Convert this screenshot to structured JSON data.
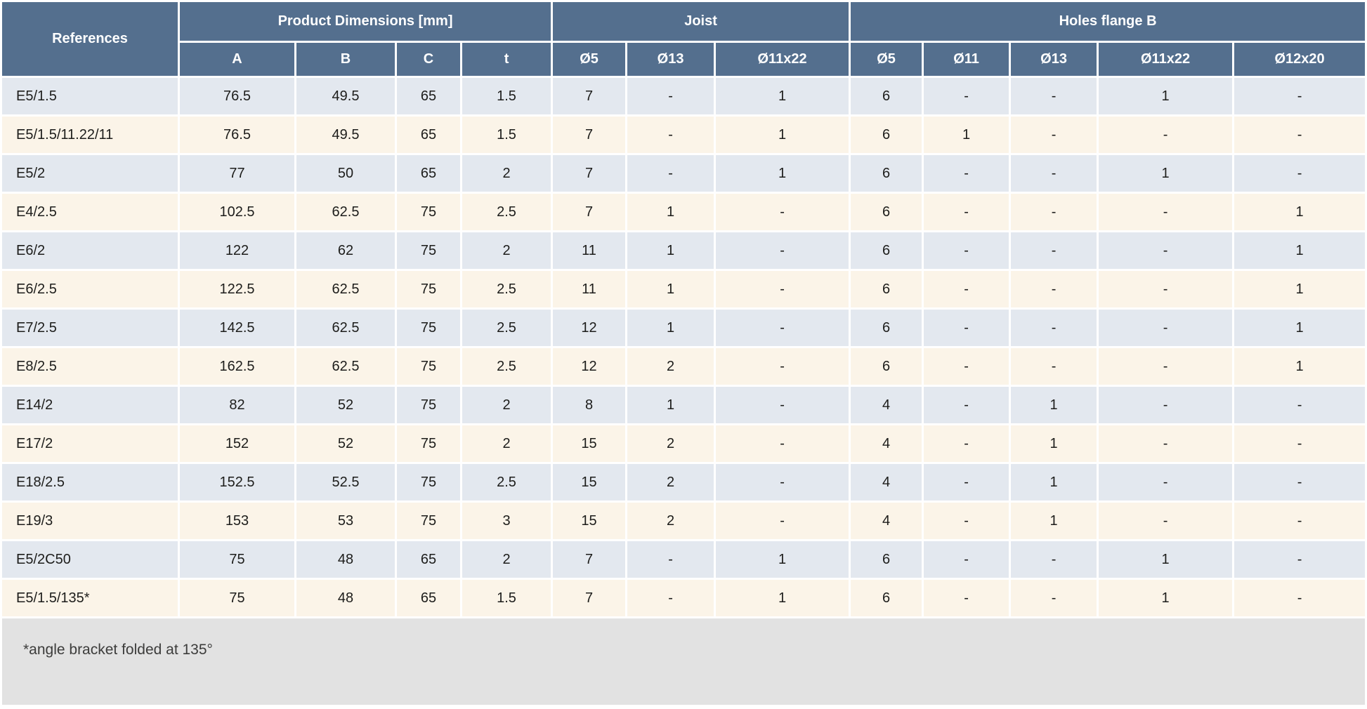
{
  "table": {
    "references_label": "References",
    "groups": [
      {
        "label": "Product Dimensions [mm]",
        "columns": [
          "A",
          "B",
          "C",
          "t"
        ]
      },
      {
        "label": "Joist",
        "columns": [
          "Ø5",
          "Ø13",
          "Ø11x22"
        ]
      },
      {
        "label": "Holes flange B",
        "columns": [
          "Ø5",
          "Ø11",
          "Ø13",
          "Ø11x22",
          "Ø12x20"
        ]
      }
    ],
    "rows": [
      {
        "reference": "E5/1.5",
        "values": [
          "76.5",
          "49.5",
          "65",
          "1.5",
          "7",
          "-",
          "1",
          "6",
          "-",
          "-",
          "1",
          "-"
        ]
      },
      {
        "reference": "E5/1.5/11.22/11",
        "values": [
          "76.5",
          "49.5",
          "65",
          "1.5",
          "7",
          "-",
          "1",
          "6",
          "1",
          "-",
          "-",
          "-"
        ]
      },
      {
        "reference": "E5/2",
        "values": [
          "77",
          "50",
          "65",
          "2",
          "7",
          "-",
          "1",
          "6",
          "-",
          "-",
          "1",
          "-"
        ]
      },
      {
        "reference": "E4/2.5",
        "values": [
          "102.5",
          "62.5",
          "75",
          "2.5",
          "7",
          "1",
          "-",
          "6",
          "-",
          "-",
          "-",
          "1"
        ]
      },
      {
        "reference": "E6/2",
        "values": [
          "122",
          "62",
          "75",
          "2",
          "11",
          "1",
          "-",
          "6",
          "-",
          "-",
          "-",
          "1"
        ]
      },
      {
        "reference": "E6/2.5",
        "values": [
          "122.5",
          "62.5",
          "75",
          "2.5",
          "11",
          "1",
          "-",
          "6",
          "-",
          "-",
          "-",
          "1"
        ]
      },
      {
        "reference": "E7/2.5",
        "values": [
          "142.5",
          "62.5",
          "75",
          "2.5",
          "12",
          "1",
          "-",
          "6",
          "-",
          "-",
          "-",
          "1"
        ]
      },
      {
        "reference": "E8/2.5",
        "values": [
          "162.5",
          "62.5",
          "75",
          "2.5",
          "12",
          "2",
          "-",
          "6",
          "-",
          "-",
          "-",
          "1"
        ]
      },
      {
        "reference": "E14/2",
        "values": [
          "82",
          "52",
          "75",
          "2",
          "8",
          "1",
          "-",
          "4",
          "-",
          "1",
          "-",
          "-"
        ]
      },
      {
        "reference": "E17/2",
        "values": [
          "152",
          "52",
          "75",
          "2",
          "15",
          "2",
          "-",
          "4",
          "-",
          "1",
          "-",
          "-"
        ]
      },
      {
        "reference": "E18/2.5",
        "values": [
          "152.5",
          "52.5",
          "75",
          "2.5",
          "15",
          "2",
          "-",
          "4",
          "-",
          "1",
          "-",
          "-"
        ]
      },
      {
        "reference": "E19/3",
        "values": [
          "153",
          "53",
          "75",
          "3",
          "15",
          "2",
          "-",
          "4",
          "-",
          "1",
          "-",
          "-"
        ]
      },
      {
        "reference": "E5/2C50",
        "values": [
          "75",
          "48",
          "65",
          "2",
          "7",
          "-",
          "1",
          "6",
          "-",
          "-",
          "1",
          "-"
        ]
      },
      {
        "reference": "E5/1.5/135*",
        "values": [
          "75",
          "48",
          "65",
          "1.5",
          "7",
          "-",
          "1",
          "6",
          "-",
          "-",
          "1",
          "-"
        ]
      }
    ]
  },
  "footnote": "*angle bracket folded at 135°",
  "colors": {
    "header_bg": "#546f8e",
    "header_text": "#ffffff",
    "row_blue": "#e3e8ef",
    "row_cream": "#fbf4e8",
    "footer_bg": "#e2e2e2",
    "body_text": "#1d1d1b"
  }
}
